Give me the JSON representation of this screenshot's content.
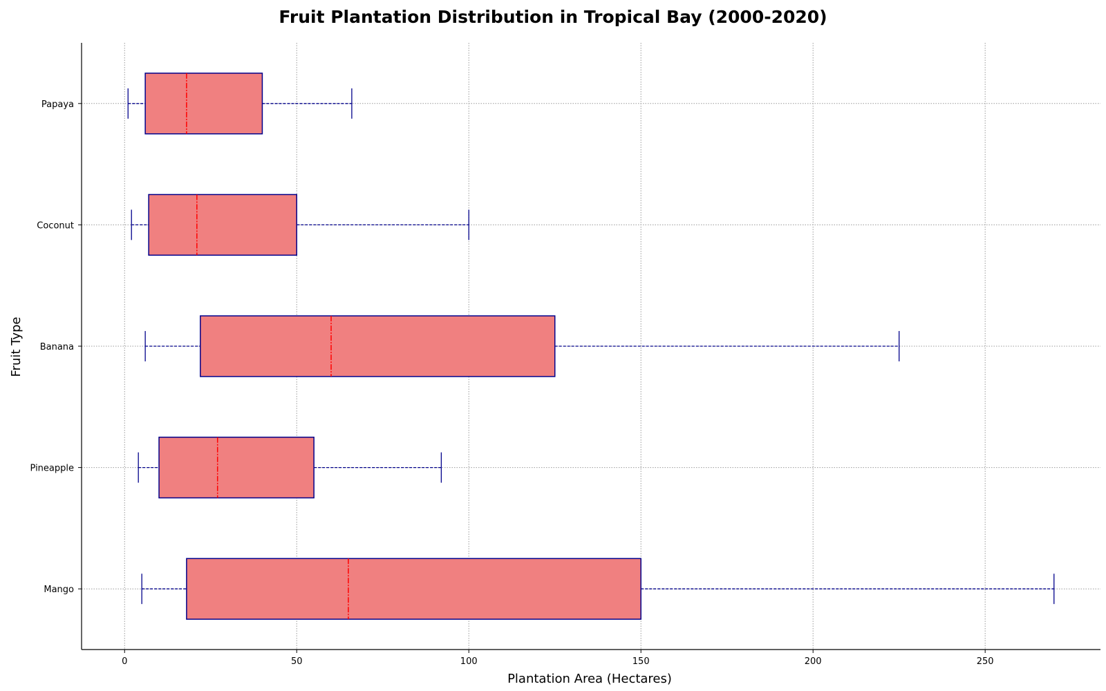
{
  "chart_data": {
    "type": "box",
    "orientation": "horizontal",
    "title": "Fruit Plantation Distribution in Tropical Bay (2000-2020)",
    "xlabel": "Plantation Area (Hectares)",
    "ylabel": "Fruit Type",
    "xlim": [
      -12.5,
      283.5
    ],
    "xticks": [
      0,
      50,
      100,
      150,
      200,
      250
    ],
    "grid": true,
    "legend": "none",
    "colors": {
      "box_fill": "#f08080",
      "box_edge": "#00008b",
      "median": "#ff0000",
      "whisker": "#00008b",
      "grid": "#999999"
    },
    "categories": [
      "Mango",
      "Pineapple",
      "Banana",
      "Coconut",
      "Papaya"
    ],
    "boxes": [
      {
        "label": "Mango",
        "whislo": 5,
        "q1": 18,
        "med": 65,
        "q3": 150,
        "whishi": 270
      },
      {
        "label": "Pineapple",
        "whislo": 4,
        "q1": 10,
        "med": 27,
        "q3": 55,
        "whishi": 92
      },
      {
        "label": "Banana",
        "whislo": 6,
        "q1": 22,
        "med": 60,
        "q3": 125,
        "whishi": 225
      },
      {
        "label": "Coconut",
        "whislo": 2,
        "q1": 7,
        "med": 21,
        "q3": 50,
        "whishi": 100
      },
      {
        "label": "Papaya",
        "whislo": 1,
        "q1": 6,
        "med": 18,
        "q3": 40,
        "whishi": 66
      }
    ]
  }
}
